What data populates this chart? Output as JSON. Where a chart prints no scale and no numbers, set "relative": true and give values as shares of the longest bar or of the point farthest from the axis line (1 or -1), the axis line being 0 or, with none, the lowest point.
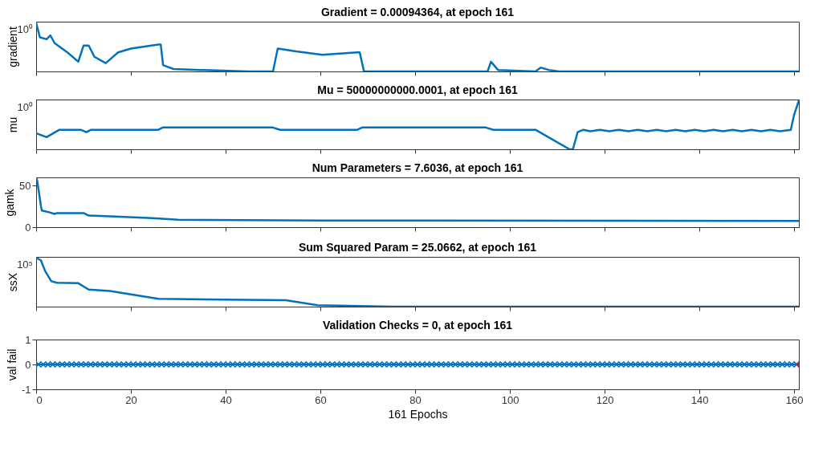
{
  "chart_data": [
    {
      "type": "line",
      "title": "Gradient = 0.00094364, at epoch 161",
      "ylabel": "gradient",
      "relative": true,
      "tick_labels": false,
      "xlim": [
        0,
        161
      ],
      "xticks": [
        0,
        20,
        40,
        60,
        80,
        100,
        120,
        140,
        160
      ],
      "annotations": [
        "10⁰"
      ],
      "series": [
        {
          "color": "#0072bd",
          "marker": "none",
          "x": [
            0,
            0.8,
            2.2,
            3,
            3.9,
            6.6,
            8.9,
            10,
            11.1,
            12.3,
            14.7,
            17.3,
            20,
            25.8,
            26.3,
            26.8,
            29,
            34.7,
            44.8,
            50,
            51,
            54.9,
            60.4,
            67.8,
            68.3,
            69.2,
            95.3,
            96,
            97.5,
            105.4,
            106.5,
            108.2,
            110.4,
            161
          ],
          "values": [
            1,
            0.7,
            0.66,
            0.74,
            0.58,
            0.39,
            0.2,
            0.53,
            0.53,
            0.3,
            0.17,
            0.39,
            0.47,
            0.55,
            0.55,
            0.13,
            0.05,
            0.03,
            0,
            0,
            0.47,
            0.41,
            0.34,
            0.39,
            0.39,
            0,
            0,
            0.2,
            0.03,
            0,
            0.08,
            0.03,
            0,
            0
          ]
        }
      ]
    },
    {
      "type": "line",
      "title": "Mu = 50000000000.0001, at epoch 161",
      "ylabel": "mu",
      "relative": true,
      "tick_labels": false,
      "xlim": [
        0,
        161
      ],
      "xticks": [
        0,
        20,
        40,
        60,
        80,
        100,
        120,
        140,
        160
      ],
      "annotations": [
        "10⁰"
      ],
      "series": [
        {
          "color": "#0072bd",
          "marker": "none",
          "x": [
            0,
            2.2,
            4.9,
            9.4,
            10.6,
            11.6,
            25.8,
            26.8,
            49.8,
            51.5,
            67.8,
            68.9,
            94.8,
            96.5,
            105.4,
            112.6,
            113.3,
            114.3,
            115.5,
            117,
            119,
            121,
            123,
            125,
            127,
            129,
            131,
            133,
            135,
            137,
            139,
            141,
            143,
            145,
            147,
            149,
            151,
            153,
            155,
            157,
            159.3,
            160,
            161
          ],
          "values": [
            0.33,
            0.25,
            0.4,
            0.4,
            0.35,
            0.4,
            0.4,
            0.45,
            0.45,
            0.4,
            0.4,
            0.45,
            0.45,
            0.4,
            0.4,
            0,
            0,
            0.35,
            0.4,
            0.37,
            0.4,
            0.37,
            0.4,
            0.37,
            0.4,
            0.37,
            0.4,
            0.37,
            0.4,
            0.37,
            0.4,
            0.37,
            0.4,
            0.37,
            0.4,
            0.37,
            0.4,
            0.37,
            0.4,
            0.37,
            0.4,
            0.71,
            1
          ]
        }
      ]
    },
    {
      "type": "line",
      "title": "Num Parameters = 7.6036, at epoch 161",
      "ylabel": "gamk",
      "tick_labels": "y",
      "xlim": [
        0,
        161
      ],
      "xticks": [
        0,
        20,
        40,
        60,
        80,
        100,
        120,
        140,
        160
      ],
      "ylim": [
        0,
        60
      ],
      "yticks": [
        0,
        50
      ],
      "series": [
        {
          "color": "#0072bd",
          "marker": "none",
          "x": [
            0,
            0.2,
            0.8,
            1,
            1.2,
            2.7,
            3.9,
            4.4,
            10,
            11.1,
            15.6,
            24.6,
            30,
            60.5,
            161
          ],
          "values": [
            59,
            57,
            34,
            26,
            20,
            18,
            16,
            17,
            17,
            14,
            13,
            11,
            9,
            8,
            7.6036
          ]
        }
      ]
    },
    {
      "type": "line",
      "title": "Sum Squared Param = 25.0662, at epoch 161",
      "ylabel": "ssX",
      "relative": true,
      "tick_labels": false,
      "xlim": [
        0,
        161
      ],
      "xticks": [
        0,
        20,
        40,
        60,
        80,
        100,
        120,
        140,
        160
      ],
      "annotations": [
        "10⁵"
      ],
      "series": [
        {
          "color": "#0072bd",
          "marker": "none",
          "x": [
            0,
            1,
            1.9,
            3.2,
            4.4,
            8.9,
            11.1,
            15.6,
            20,
            25.8,
            52.7,
            59.4,
            75,
            161
          ],
          "values": [
            1,
            0.95,
            0.73,
            0.52,
            0.49,
            0.48,
            0.35,
            0.32,
            0.25,
            0.16,
            0.13,
            0.03,
            0,
            0
          ]
        }
      ]
    },
    {
      "type": "line",
      "title": "Validation Checks = 0, at epoch 161",
      "ylabel": "val fail",
      "xlabel": "161 Epochs",
      "xlim": [
        0,
        161
      ],
      "xticks": [
        0,
        20,
        40,
        60,
        80,
        100,
        120,
        140,
        160
      ],
      "ylim": [
        -1,
        1
      ],
      "yticks": [
        -1,
        0,
        1
      ],
      "series": [
        {
          "color": "#0072bd",
          "marker": "diamond",
          "x": [
            0,
            1,
            2,
            3,
            4,
            5,
            6,
            7,
            8,
            9,
            10,
            11,
            12,
            13,
            14,
            15,
            16,
            17,
            18,
            19,
            20,
            21,
            22,
            23,
            24,
            25,
            26,
            27,
            28,
            29,
            30,
            31,
            32,
            33,
            34,
            35,
            36,
            37,
            38,
            39,
            40,
            41,
            42,
            43,
            44,
            45,
            46,
            47,
            48,
            49,
            50,
            51,
            52,
            53,
            54,
            55,
            56,
            57,
            58,
            59,
            60,
            61,
            62,
            63,
            64,
            65,
            66,
            67,
            68,
            69,
            70,
            71,
            72,
            73,
            74,
            75,
            76,
            77,
            78,
            79,
            80,
            81,
            82,
            83,
            84,
            85,
            86,
            87,
            88,
            89,
            90,
            91,
            92,
            93,
            94,
            95,
            96,
            97,
            98,
            99,
            100,
            101,
            102,
            103,
            104,
            105,
            106,
            107,
            108,
            109,
            110,
            111,
            112,
            113,
            114,
            115,
            116,
            117,
            118,
            119,
            120,
            121,
            122,
            123,
            124,
            125,
            126,
            127,
            128,
            129,
            130,
            131,
            132,
            133,
            134,
            135,
            136,
            137,
            138,
            139,
            140,
            141,
            142,
            143,
            144,
            145,
            146,
            147,
            148,
            149,
            150,
            151,
            152,
            153,
            154,
            155,
            156,
            157,
            158,
            159,
            160,
            161
          ],
          "values": [
            0,
            0,
            0,
            0,
            0,
            0,
            0,
            0,
            0,
            0,
            0,
            0,
            0,
            0,
            0,
            0,
            0,
            0,
            0,
            0,
            0,
            0,
            0,
            0,
            0,
            0,
            0,
            0,
            0,
            0,
            0,
            0,
            0,
            0,
            0,
            0,
            0,
            0,
            0,
            0,
            0,
            0,
            0,
            0,
            0,
            0,
            0,
            0,
            0,
            0,
            0,
            0,
            0,
            0,
            0,
            0,
            0,
            0,
            0,
            0,
            0,
            0,
            0,
            0,
            0,
            0,
            0,
            0,
            0,
            0,
            0,
            0,
            0,
            0,
            0,
            0,
            0,
            0,
            0,
            0,
            0,
            0,
            0,
            0,
            0,
            0,
            0,
            0,
            0,
            0,
            0,
            0,
            0,
            0,
            0,
            0,
            0,
            0,
            0,
            0,
            0,
            0,
            0,
            0,
            0,
            0,
            0,
            0,
            0,
            0,
            0,
            0,
            0,
            0,
            0,
            0,
            0,
            0,
            0,
            0,
            0,
            0,
            0,
            0,
            0,
            0,
            0,
            0,
            0,
            0,
            0,
            0,
            0,
            0,
            0,
            0,
            0,
            0,
            0,
            0,
            0,
            0,
            0,
            0,
            0,
            0,
            0,
            0,
            0,
            0,
            0,
            0,
            0,
            0,
            0,
            0,
            0,
            0,
            0,
            0,
            0,
            0
          ]
        },
        {
          "type": "scatter",
          "color": "#ff0000",
          "marker": "diamond",
          "x": [
            161
          ],
          "values": [
            0
          ]
        }
      ]
    }
  ]
}
